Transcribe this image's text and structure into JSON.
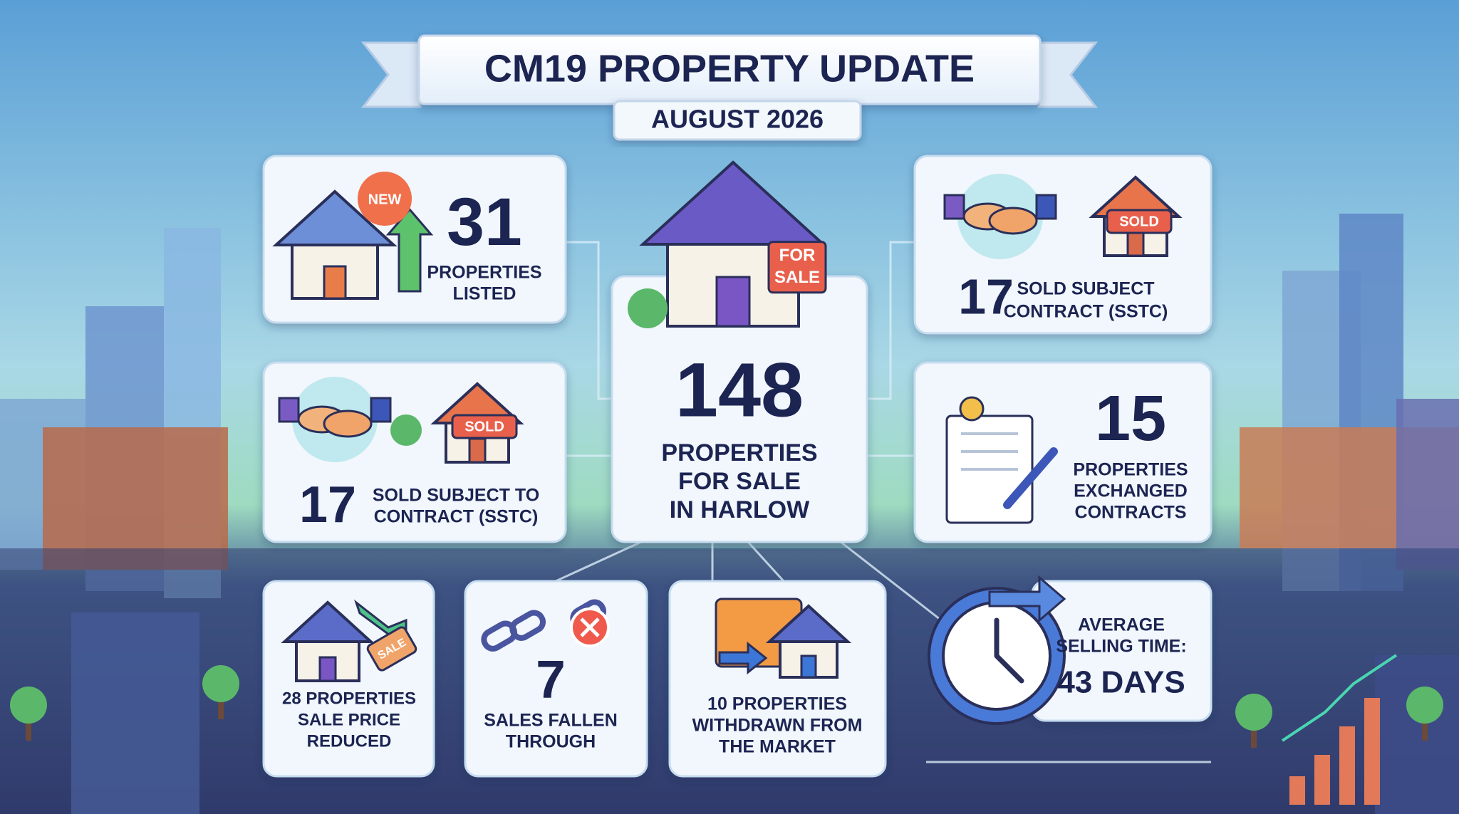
{
  "header": {
    "title": "CM19 PROPERTY UPDATE",
    "subtitle": "AUGUST 2026"
  },
  "cards": [
    {
      "number": 31,
      "lines": [
        "PROPERTIES",
        "LISTED"
      ],
      "badge": [
        "NEW"
      ]
    },
    {
      "number": 17,
      "lines": [
        "SOLD SUBJECT TO",
        "CONTRACT (SSTC)"
      ],
      "badge": [
        "SOLD"
      ]
    },
    {
      "number": 148,
      "lines": [
        "PROPERTIES",
        "FOR SALE",
        "IN HARLOW"
      ],
      "badge": [
        "FOR",
        "SALE"
      ]
    },
    {
      "number": 17,
      "lines": [
        "SOLD SUBJECT",
        "CONTRACT (SSTC)"
      ],
      "badge": [
        "SOLD"
      ]
    },
    {
      "number": 15,
      "lines": [
        "PROPERTIES",
        "EXCHANGED",
        "CONTRACTS"
      ]
    },
    {
      "lines": [
        "28 PROPERTIES",
        "SALE PRICE",
        "REDUCED"
      ],
      "badge": [
        "SALE"
      ]
    },
    {
      "number": 7,
      "lines": [
        "SALES FALLEN",
        "THROUGH"
      ]
    },
    {
      "lines": [
        "10 PROPERTIES",
        "WITHDRAWN FROM",
        "THE MARKET"
      ]
    },
    {
      "lines": [
        "AVERAGE",
        "SELLING TIME:"
      ],
      "highlight": "43 DAYS"
    }
  ]
}
